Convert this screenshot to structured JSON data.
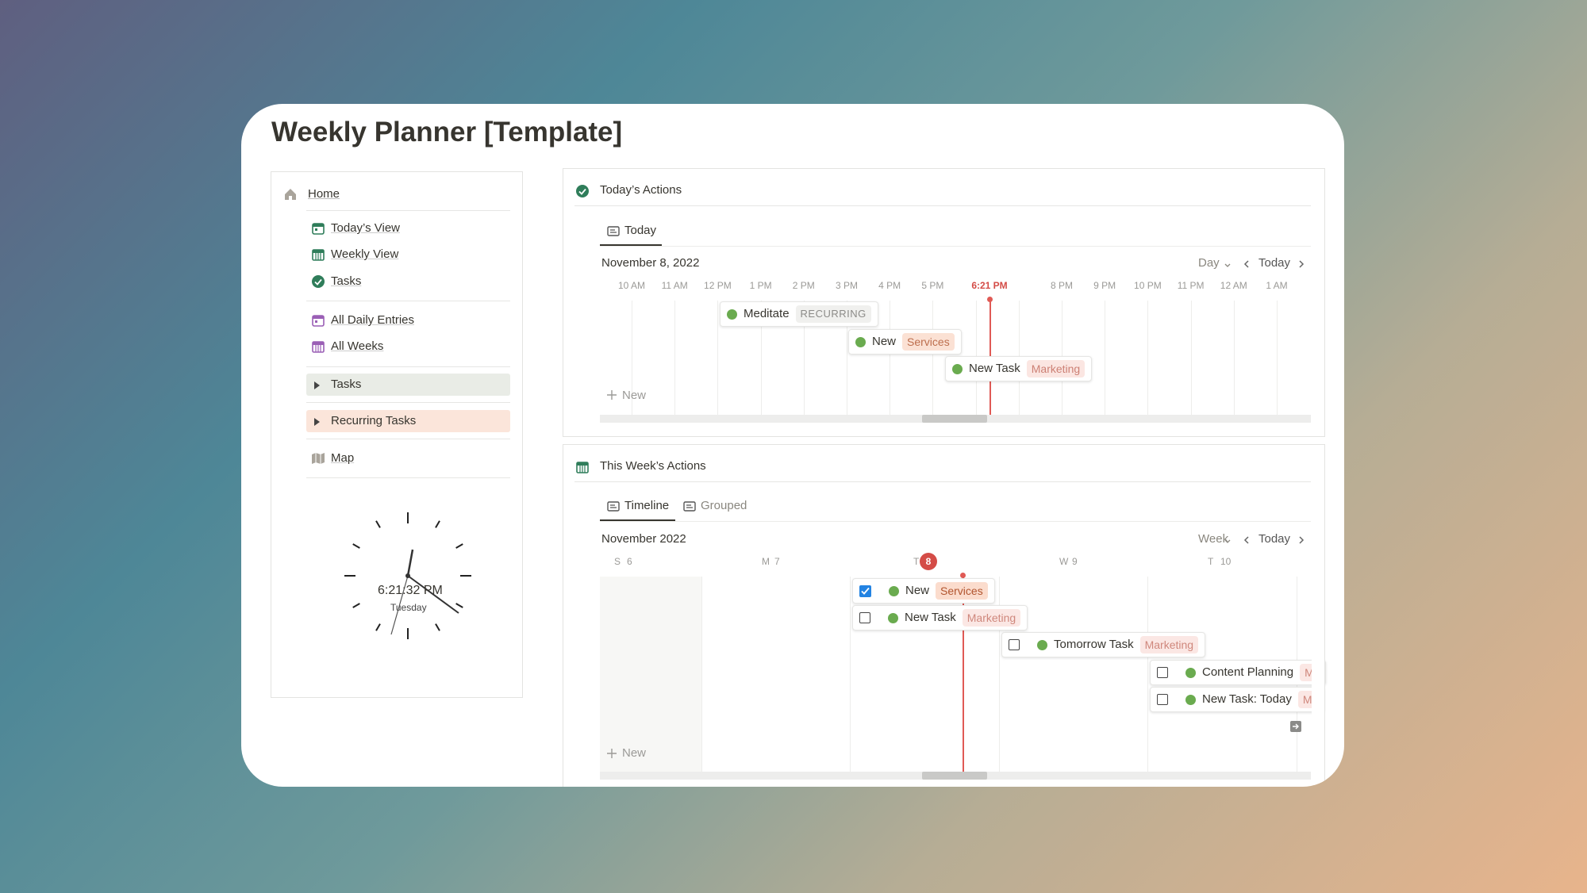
{
  "header": {
    "title": "Weekly Planner [Template]"
  },
  "sidebar": {
    "home": "Home",
    "links": [
      "Today’s View",
      "Weekly View",
      "Tasks",
      "All Daily Entries",
      "All Weeks"
    ],
    "toggles": [
      "Tasks",
      "Recurring Tasks"
    ],
    "map": "Map",
    "clock": {
      "time": "6:21:32 PM",
      "day": "Tuesday"
    }
  },
  "today_panel": {
    "title": "Today’s Actions",
    "tabs": [
      "Today"
    ],
    "date": "November 8, 2022",
    "view": "Day",
    "today": "Today",
    "hours": [
      "10 AM",
      "11 AM",
      "12 PM",
      "1 PM",
      "2 PM",
      "3 PM",
      "4 PM",
      "5 PM",
      "8 PM",
      "9 PM",
      "10 PM",
      "11 PM",
      "12 AM",
      "1 AM"
    ],
    "now": "6:21 PM",
    "events": [
      {
        "name": "Meditate",
        "tag": "RECURRING"
      },
      {
        "name": "New",
        "tag": "Services"
      },
      {
        "name": "New Task",
        "tag": "Marketing"
      }
    ],
    "new": "New"
  },
  "week_panel": {
    "title": "This Week’s Actions",
    "tabs": [
      "Timeline",
      "Grouped"
    ],
    "date": "November 2022",
    "view": "Week",
    "today": "Today",
    "days": [
      {
        "letter": "S",
        "num": "6"
      },
      {
        "letter": "M",
        "num": "7"
      },
      {
        "letter": "T",
        "num": "8"
      },
      {
        "letter": "W",
        "num": "9"
      },
      {
        "letter": "T",
        "num": "10"
      }
    ],
    "events": [
      {
        "name": "New",
        "tag": "Services",
        "done": true
      },
      {
        "name": "New Task",
        "tag": "Marketing",
        "done": false
      },
      {
        "name": "Tomorrow Task",
        "tag": "Marketing",
        "done": false
      },
      {
        "name": "Content Planning",
        "tag": "M",
        "done": false
      },
      {
        "name": "New Task: Today",
        "tag": "M",
        "done": false
      }
    ],
    "new": "New"
  }
}
